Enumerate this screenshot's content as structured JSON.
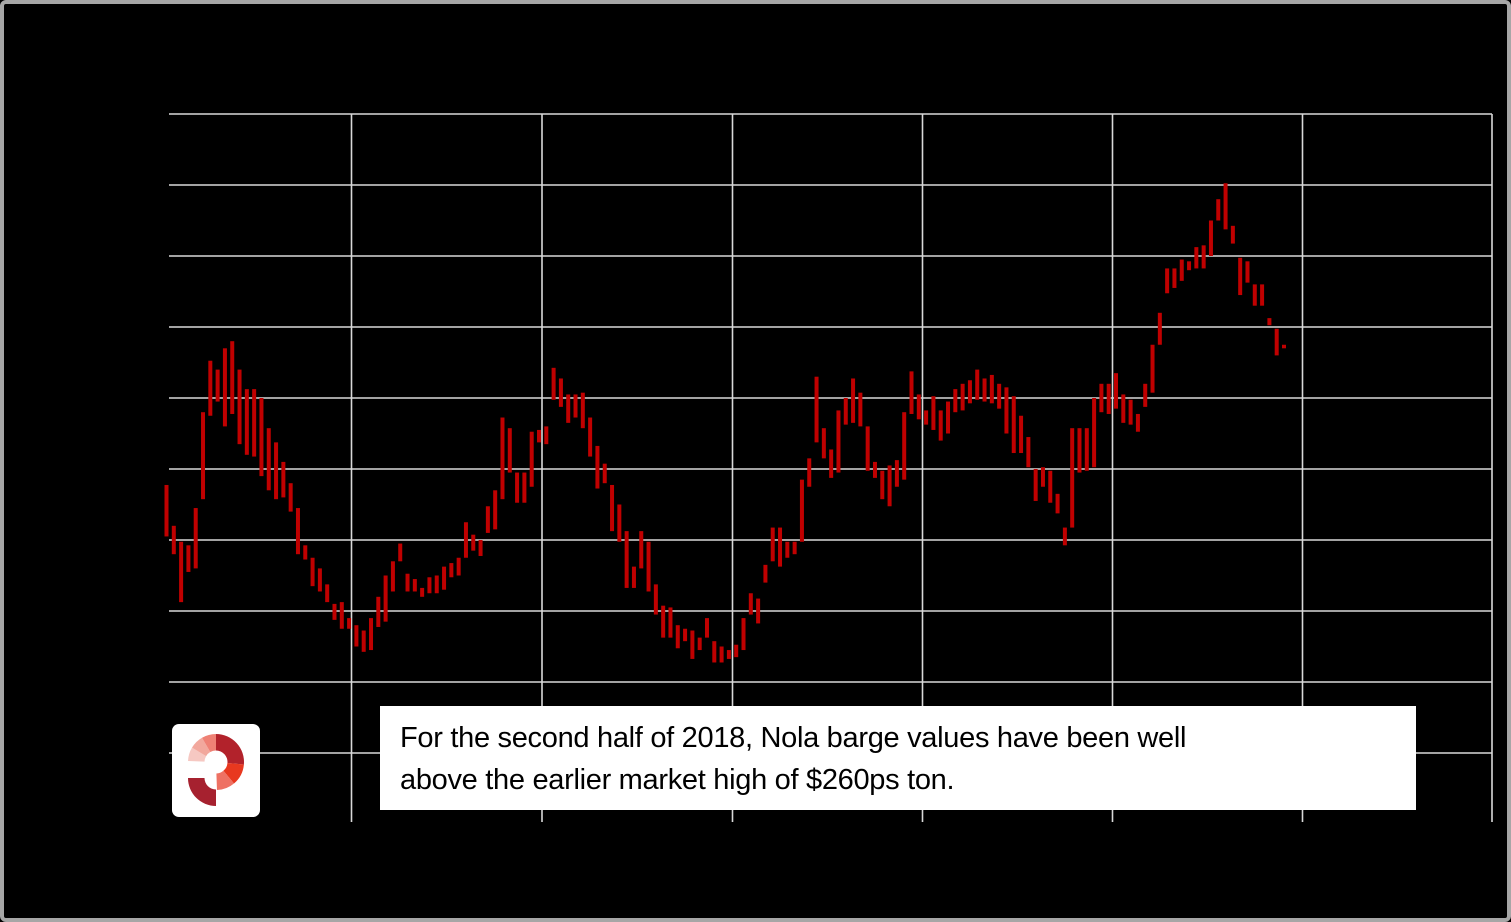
{
  "window": {
    "type": "chart-image",
    "background_color": "#000000",
    "frame_border_color": "#a6a6a6"
  },
  "caption": {
    "full_text": "For the second half of 2018, Nola barge values have been well above the earlier market high of $260ps ton.",
    "lines": [
      "For the second half of 2018, Nola barge values have been well",
      "above the earlier market high of $260ps ton."
    ],
    "text_color": "#000000",
    "background_color": "#ffffff"
  },
  "logo": {
    "name": "profercy-ring-logo",
    "tile_color": "#ffffff",
    "segments": [
      {
        "name": "ring-top-right-quadrant",
        "color": "#b2222b"
      },
      {
        "name": "ring-right-bright-red",
        "color": "#e8381f"
      },
      {
        "name": "ring-bottom-right-coral",
        "color": "#ee7163"
      },
      {
        "name": "ring-tail-bottom-left",
        "color": "#a6212f"
      },
      {
        "name": "ring-left-light-pink",
        "color": "#f6c8c2"
      },
      {
        "name": "ring-upper-left-salmon",
        "color": "#f2a89d"
      },
      {
        "name": "ring-top-left-coral",
        "color": "#ef8175"
      }
    ]
  },
  "chart_data": {
    "type": "bar",
    "subtype": "high-low price range bars",
    "title": "",
    "xlabel": "",
    "ylabel": "",
    "axis_labels_visible": false,
    "legend": "none",
    "grid": "on",
    "bar_color": "#c00000",
    "gridline_color": "#d9d9d9",
    "note": "Axis tick labels are not visible in the image (black text on black background). Y scale estimated from gridlines and caption: 10 gridline rows assumed $20/ton apart, top gridline = 320, plot bottom = 120; the earlier market high bars reach ~256-260 and the late-2018 peak ~300, matching the caption's $260 reference.",
    "y_gridline_values": [
      320,
      300,
      280,
      260,
      240,
      220,
      200,
      180,
      160,
      140
    ],
    "ylim": [
      120,
      320
    ],
    "x_axis_note": "154 consecutive periods (time axis, labels not visible), ending after the 2018 rally",
    "bars_hi_lo": [
      [
        215.5,
        201
      ],
      [
        204,
        196
      ],
      [
        199.5,
        182.5
      ],
      [
        198.5,
        191
      ],
      [
        209,
        192
      ],
      [
        236,
        211.5
      ],
      [
        250.5,
        235
      ],
      [
        248,
        239
      ],
      [
        254,
        232
      ],
      [
        256,
        235.5
      ],
      [
        248,
        227
      ],
      [
        242.5,
        224
      ],
      [
        242.5,
        223.5
      ],
      [
        240,
        218
      ],
      [
        231.5,
        214
      ],
      [
        227.5,
        211.5
      ],
      [
        222,
        212
      ],
      [
        216,
        208
      ],
      [
        209,
        196
      ],
      [
        198.5,
        194.5
      ],
      [
        195,
        187
      ],
      [
        192,
        185.5
      ],
      [
        187.5,
        182.5
      ],
      [
        182,
        177.5
      ],
      [
        182.5,
        175
      ],
      [
        178,
        175
      ],
      [
        176,
        170
      ],
      [
        174.5,
        168.5
      ],
      [
        178,
        169
      ],
      [
        184,
        175.5
      ],
      [
        190,
        177
      ],
      [
        194,
        185.5
      ],
      [
        199,
        194
      ],
      [
        190.5,
        185.5
      ],
      [
        189,
        185.5
      ],
      [
        186.5,
        184
      ],
      [
        189.5,
        185
      ],
      [
        190,
        185
      ],
      [
        192.5,
        186
      ],
      [
        193.5,
        189.5
      ],
      [
        195,
        190
      ],
      [
        205,
        195
      ],
      [
        201.5,
        197
      ],
      [
        200,
        195.5
      ],
      [
        209.5,
        202
      ],
      [
        214,
        203
      ],
      [
        234.5,
        211.5
      ],
      [
        231.5,
        219
      ],
      [
        219,
        210.5
      ],
      [
        219,
        210.5
      ],
      [
        230.5,
        215
      ],
      [
        231,
        227.5
      ],
      [
        232,
        227
      ],
      [
        248.5,
        239.5
      ],
      [
        245.5,
        237.5
      ],
      [
        241,
        233
      ],
      [
        241,
        234.5
      ],
      [
        241.5,
        231.5
      ],
      [
        234.5,
        223.5
      ],
      [
        226.5,
        214.5
      ],
      [
        221.5,
        216
      ],
      [
        215.5,
        202.5
      ],
      [
        210,
        199.5
      ],
      [
        202.5,
        186.5
      ],
      [
        192.5,
        186.5
      ],
      [
        202.5,
        192
      ],
      [
        199.5,
        185.5
      ],
      [
        187.5,
        179
      ],
      [
        181.5,
        172.5
      ],
      [
        181,
        172.5
      ],
      [
        176,
        169.5
      ],
      [
        175,
        171.5
      ],
      [
        174.5,
        166.5
      ],
      [
        172.5,
        169
      ],
      [
        178,
        172.5
      ],
      [
        171.5,
        165.5
      ],
      [
        170,
        165.5
      ],
      [
        169,
        166.5
      ],
      [
        170.5,
        167
      ],
      [
        178,
        169
      ],
      [
        185,
        179
      ],
      [
        183.5,
        176.5
      ],
      [
        193,
        188
      ],
      [
        203.5,
        194
      ],
      [
        203.5,
        192.5
      ],
      [
        199.5,
        195
      ],
      [
        199.5,
        196
      ],
      [
        217,
        199.5
      ],
      [
        223,
        215
      ],
      [
        246,
        227.5
      ],
      [
        231.5,
        223
      ],
      [
        225.5,
        217.5
      ],
      [
        236.5,
        219
      ],
      [
        240,
        232.5
      ],
      [
        245.5,
        233
      ],
      [
        241.5,
        232
      ],
      [
        232,
        219.5
      ],
      [
        222,
        217.5
      ],
      [
        219.5,
        211.5
      ],
      [
        221,
        209.5
      ],
      [
        222.5,
        215
      ],
      [
        236,
        217
      ],
      [
        247.5,
        235.5
      ],
      [
        241,
        234
      ],
      [
        236.5,
        232.5
      ],
      [
        240.5,
        231
      ],
      [
        236.5,
        228
      ],
      [
        239,
        230
      ],
      [
        242.5,
        236
      ],
      [
        244,
        236.5
      ],
      [
        245,
        238.5
      ],
      [
        248,
        239.5
      ],
      [
        245.5,
        239
      ],
      [
        246.5,
        238.5
      ],
      [
        244,
        237
      ],
      [
        243,
        230
      ],
      [
        240.5,
        224.5
      ],
      [
        235,
        224.5
      ],
      [
        229,
        220.5
      ],
      [
        220,
        211
      ],
      [
        220.5,
        215
      ],
      [
        219.5,
        210.5
      ],
      [
        213,
        207.5
      ],
      [
        203.5,
        198.5
      ],
      [
        231.5,
        203.5
      ],
      [
        231.5,
        219
      ],
      [
        231.5,
        219.5
      ],
      [
        240,
        220.5
      ],
      [
        244,
        236
      ],
      [
        244,
        235.5
      ],
      [
        247,
        237
      ],
      [
        241,
        233
      ],
      [
        239.5,
        232.5
      ],
      [
        235.5,
        230.5
      ],
      [
        244,
        237.5
      ],
      [
        255,
        241.5
      ],
      [
        264,
        255
      ],
      [
        276.5,
        269.5
      ],
      [
        276.5,
        271
      ],
      [
        279,
        273
      ],
      [
        278.5,
        276
      ],
      [
        282.5,
        276.5
      ],
      [
        283,
        276.5
      ],
      [
        290,
        280
      ],
      [
        296,
        290
      ],
      [
        300.5,
        287.5
      ],
      [
        288.5,
        283.5
      ],
      [
        279.5,
        269
      ],
      [
        278.5,
        272.5
      ],
      [
        272,
        266
      ],
      [
        272,
        266
      ],
      [
        262.5,
        260.5
      ],
      [
        259.5,
        252
      ],
      [
        255,
        254
      ]
    ]
  }
}
